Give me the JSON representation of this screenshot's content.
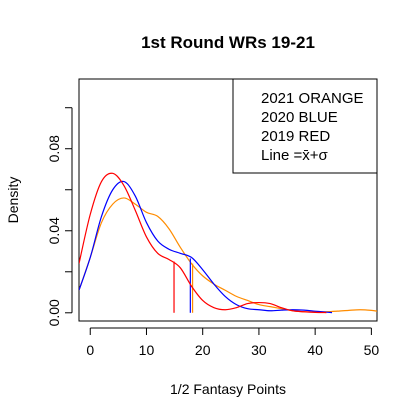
{
  "chart_data": {
    "type": "line",
    "title": "1st Round WRs 19-21",
    "xlabel": "1/2 Fantasy Points",
    "ylabel": "Density",
    "xlim": [
      -2,
      51
    ],
    "ylim": [
      -0.004,
      0.114
    ],
    "x_ticks": [
      0,
      10,
      20,
      30,
      40,
      50
    ],
    "x_tick_labels": [
      "0",
      "10",
      "20",
      "30",
      "40",
      "50"
    ],
    "y_ticks": [
      0.0,
      0.04,
      0.08
    ],
    "y_tick_labels": [
      "0.00",
      "0.04",
      "0.08"
    ],
    "grid": false,
    "legend_position": "top-right",
    "legend": [
      "2021 ORANGE",
      "2020 BLUE",
      "2019 RED",
      "Line =x̄+σ"
    ],
    "series": [
      {
        "color": "#ff8c00",
        "x": [
          -2,
          0,
          2,
          4,
          6,
          8,
          10,
          12,
          14,
          16,
          18,
          20,
          22,
          24,
          26,
          28,
          30,
          32,
          34,
          36,
          38,
          40,
          42,
          44,
          46,
          48,
          50,
          51
        ],
        "y": [
          0.011,
          0.027,
          0.044,
          0.053,
          0.056,
          0.053,
          0.049,
          0.047,
          0.041,
          0.032,
          0.024,
          0.018,
          0.014,
          0.011,
          0.008,
          0.006,
          0.004,
          0.003,
          0.002,
          0.001,
          0.0005,
          0.0005,
          0.0005,
          0.0008,
          0.0012,
          0.0015,
          0.0012,
          0.0008
        ],
        "marker_x": 18.2,
        "marker_y": 0.024
      },
      {
        "color": "#0000ff",
        "x": [
          -2,
          0,
          2,
          4,
          6,
          8,
          10,
          12,
          14,
          16,
          18,
          20,
          22,
          24,
          26,
          28,
          30,
          32,
          34,
          36,
          38,
          40,
          42,
          43
        ],
        "y": [
          0.011,
          0.027,
          0.047,
          0.06,
          0.064,
          0.057,
          0.044,
          0.035,
          0.031,
          0.029,
          0.027,
          0.021,
          0.014,
          0.008,
          0.004,
          0.002,
          0.0015,
          0.001,
          0.0013,
          0.0015,
          0.0013,
          0.0008,
          0.0003,
          0.0001
        ],
        "marker_x": 17.8,
        "marker_y": 0.0265
      },
      {
        "color": "#ff0000",
        "x": [
          -2,
          0,
          2,
          4,
          6,
          8,
          10,
          12,
          14,
          16,
          18,
          20,
          22,
          24,
          26,
          28,
          30,
          32,
          34,
          36,
          38,
          40,
          42
        ],
        "y": [
          0.024,
          0.048,
          0.064,
          0.068,
          0.062,
          0.05,
          0.037,
          0.029,
          0.026,
          0.022,
          0.013,
          0.006,
          0.0025,
          0.0015,
          0.0025,
          0.0045,
          0.005,
          0.0045,
          0.0025,
          0.001,
          0.0005,
          0.0002,
          0.0001
        ],
        "marker_x": 14.9,
        "marker_y": 0.025
      }
    ]
  }
}
